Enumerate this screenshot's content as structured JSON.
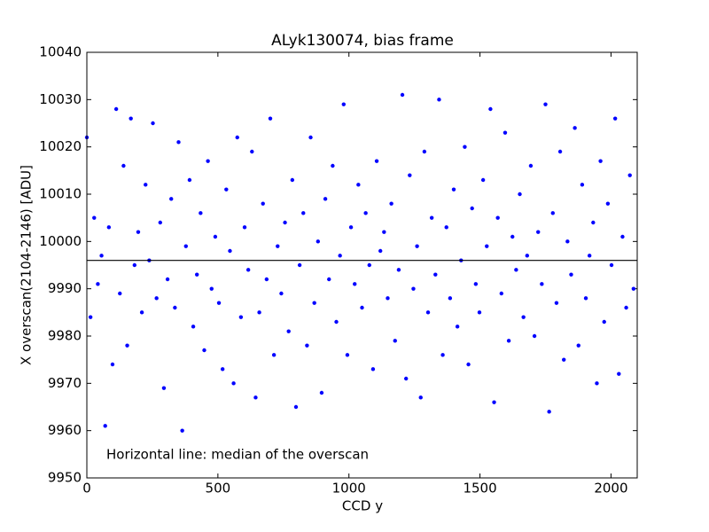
{
  "chart_data": {
    "type": "scatter",
    "title": "ALyk130074, bias frame",
    "x_label": "CCD y",
    "y_label": "X overscan(2104-2146) [ADU]",
    "annotation": "Horizontal line: median of the overscan",
    "color": "#0000ff",
    "median": 9996,
    "median_color": "#000000",
    "xlim": [
      0,
      2100
    ],
    "ylim": [
      9950,
      10040
    ],
    "xticks": [
      0,
      500,
      1000,
      1500,
      2000
    ],
    "yticks": [
      9950,
      9960,
      9970,
      9980,
      9990,
      10000,
      10010,
      10020,
      10030,
      10040
    ],
    "series": [
      {
        "x": [
          0,
          14,
          28,
          42,
          56,
          70,
          84,
          98,
          112,
          126,
          140,
          154,
          168,
          182,
          196,
          210,
          224,
          238,
          252,
          266,
          280,
          294,
          308,
          322,
          336,
          350,
          364,
          378,
          392,
          406,
          420,
          434,
          448,
          462,
          476,
          490,
          504,
          518,
          532,
          546,
          560,
          574,
          588,
          602,
          616,
          630,
          644,
          658,
          672,
          686,
          700,
          714,
          728,
          742,
          756,
          770,
          784,
          798,
          812,
          826,
          840,
          854,
          868,
          882,
          896,
          910,
          924,
          938,
          952,
          966,
          980,
          994,
          1008,
          1022,
          1036,
          1050,
          1064,
          1078,
          1092,
          1106,
          1120,
          1134,
          1148,
          1162,
          1176,
          1190,
          1204,
          1218,
          1232,
          1246,
          1260,
          1274,
          1288,
          1302,
          1316,
          1330,
          1344,
          1358,
          1372,
          1386,
          1400,
          1414,
          1428,
          1442,
          1456,
          1470,
          1484,
          1498,
          1512,
          1526,
          1540,
          1554,
          1568,
          1582,
          1596,
          1610,
          1624,
          1638,
          1652,
          1666,
          1680,
          1694,
          1708,
          1722,
          1736,
          1750,
          1764,
          1778,
          1792,
          1806,
          1820,
          1834,
          1848,
          1862,
          1876,
          1890,
          1904,
          1918,
          1932,
          1946,
          1960,
          1974,
          1988,
          2002,
          2016,
          2030,
          2044,
          2058,
          2072,
          2086
        ],
        "values": [
          10022,
          9984,
          10005,
          9991,
          9997,
          9961,
          10003,
          9974,
          10028,
          9989,
          10016,
          9978,
          10026,
          9995,
          10002,
          9985,
          10012,
          9996,
          10025,
          9988,
          10004,
          9969,
          9992,
          10009,
          9986,
          10021,
          9960,
          9999,
          10013,
          9982,
          9993,
          10006,
          9977,
          10017,
          9990,
          10001,
          9987,
          9973,
          10011,
          9998,
          9970,
          10022,
          9984,
          10003,
          9994,
          10019,
          9967,
          9985,
          10008,
          9992,
          10026,
          9976,
          9999,
          9989,
          10004,
          9981,
          10013,
          9965,
          9995,
          10006,
          9978,
          10022,
          9987,
          10000,
          9968,
          10009,
          9992,
          10016,
          9983,
          9997,
          10029,
          9976,
          10003,
          9991,
          10012,
          9986,
          10006,
          9995,
          9973,
          10017,
          9998,
          10002,
          9988,
          10008,
          9979,
          9994,
          10031,
          9971,
          10014,
          9990,
          9999,
          9967,
          10019,
          9985,
          10005,
          9993,
          10030,
          9976,
          10003,
          9988,
          10011,
          9982,
          9996,
          10020,
          9974,
          10007,
          9991,
          9985,
          10013,
          9999,
          10028,
          9966,
          10005,
          9989,
          10023,
          9979,
          10001,
          9994,
          10010,
          9984,
          9997,
          10016,
          9980,
          10002,
          9991,
          10029,
          9964,
          10006,
          9987,
          10019,
          9975,
          10000,
          9993,
          10024,
          9978,
          10012,
          9988,
          9997,
          10004,
          9970,
          10017,
          9983,
          10008,
          9995,
          10026,
          9972,
          10001,
          9986,
          10014,
          9990
        ]
      }
    ]
  }
}
